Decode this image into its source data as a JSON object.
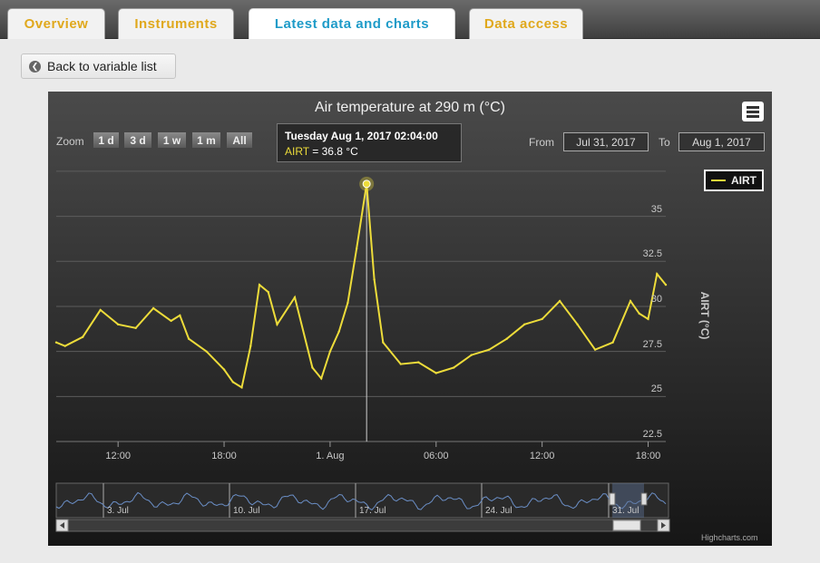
{
  "tabs": [
    {
      "label": "Overview",
      "active": false
    },
    {
      "label": "Instruments",
      "active": false
    },
    {
      "label": "Latest data and charts",
      "active": true
    },
    {
      "label": "Data access",
      "active": false
    }
  ],
  "back_button": {
    "label": "Back to variable list",
    "icon": "chevron-left-icon"
  },
  "chart": {
    "title": "Air temperature at 290 m (°C)",
    "zoom": {
      "label": "Zoom",
      "buttons": [
        "1 d",
        "3 d",
        "1 w",
        "1 m",
        "All"
      ]
    },
    "range": {
      "from_label": "From",
      "from_value": "Jul 31, 2017",
      "to_label": "To",
      "to_value": "Aug 1, 2017"
    },
    "tooltip": {
      "datetime": "Tuesday Aug 1, 2017 02:04:00",
      "series": "AIRT",
      "value": "= 36.8 °C"
    },
    "legend": {
      "label": "AIRT"
    },
    "credits": "Highcharts.com",
    "colors": {
      "series": "#eddc3a",
      "navigator": "#6b8fc7",
      "background_top": "#4a4a4a",
      "background_bottom": "#161616"
    }
  },
  "chart_data": {
    "type": "line",
    "title": "Air temperature at 290 m (°C)",
    "ylabel": "AIRT (°C)",
    "ylim": [
      22.5,
      38
    ],
    "yticks": [
      "22.5",
      "25",
      "27.5",
      "30",
      "32.5",
      "35"
    ],
    "xticks": [
      "12:00",
      "18:00",
      "1. Aug",
      "06:00",
      "12:00",
      "18:00"
    ],
    "xlim": [
      "Jul 31, 2017 08:30",
      "Aug 1, 2017 19:00"
    ],
    "grid": true,
    "legend_position": "top-right",
    "series": [
      {
        "name": "AIRT",
        "x": [
          "Jul 31 08:30",
          "Jul 31 09:00",
          "Jul 31 10:00",
          "Jul 31 11:00",
          "Jul 31 12:00",
          "Jul 31 13:00",
          "Jul 31 14:00",
          "Jul 31 15:00",
          "Jul 31 15:30",
          "Jul 31 16:00",
          "Jul 31 17:00",
          "Jul 31 18:00",
          "Jul 31 18:30",
          "Jul 31 19:00",
          "Jul 31 19:30",
          "Jul 31 20:00",
          "Jul 31 20:30",
          "Jul 31 21:00",
          "Jul 31 22:00",
          "Jul 31 23:00",
          "Jul 31 23:30",
          "Aug 1 00:00",
          "Aug 1 00:30",
          "Aug 1 01:00",
          "Aug 1 01:30",
          "Aug 1 02:04",
          "Aug 1 02:30",
          "Aug 1 03:00",
          "Aug 1 04:00",
          "Aug 1 05:00",
          "Aug 1 06:00",
          "Aug 1 07:00",
          "Aug 1 08:00",
          "Aug 1 09:00",
          "Aug 1 10:00",
          "Aug 1 11:00",
          "Aug 1 12:00",
          "Aug 1 13:00",
          "Aug 1 14:00",
          "Aug 1 15:00",
          "Aug 1 16:00",
          "Aug 1 17:00",
          "Aug 1 17:30",
          "Aug 1 18:00",
          "Aug 1 18:30",
          "Aug 1 19:00"
        ],
        "y": [
          28.0,
          27.8,
          28.3,
          29.8,
          29.0,
          28.8,
          29.9,
          29.2,
          29.5,
          28.2,
          27.5,
          26.5,
          25.8,
          25.5,
          27.8,
          31.2,
          30.8,
          29.0,
          30.5,
          26.6,
          26.0,
          27.5,
          28.6,
          30.2,
          33.2,
          36.8,
          31.5,
          28.0,
          26.8,
          26.9,
          26.3,
          26.6,
          27.3,
          27.6,
          28.2,
          29.0,
          29.3,
          30.3,
          29.0,
          27.6,
          28.0,
          30.3,
          29.6,
          29.3,
          31.8,
          31.2
        ]
      }
    ]
  },
  "navigator": {
    "labels": [
      "3. Jul",
      "10. Jul",
      "17. Jul",
      "24. Jul",
      "31. Jul"
    ]
  }
}
